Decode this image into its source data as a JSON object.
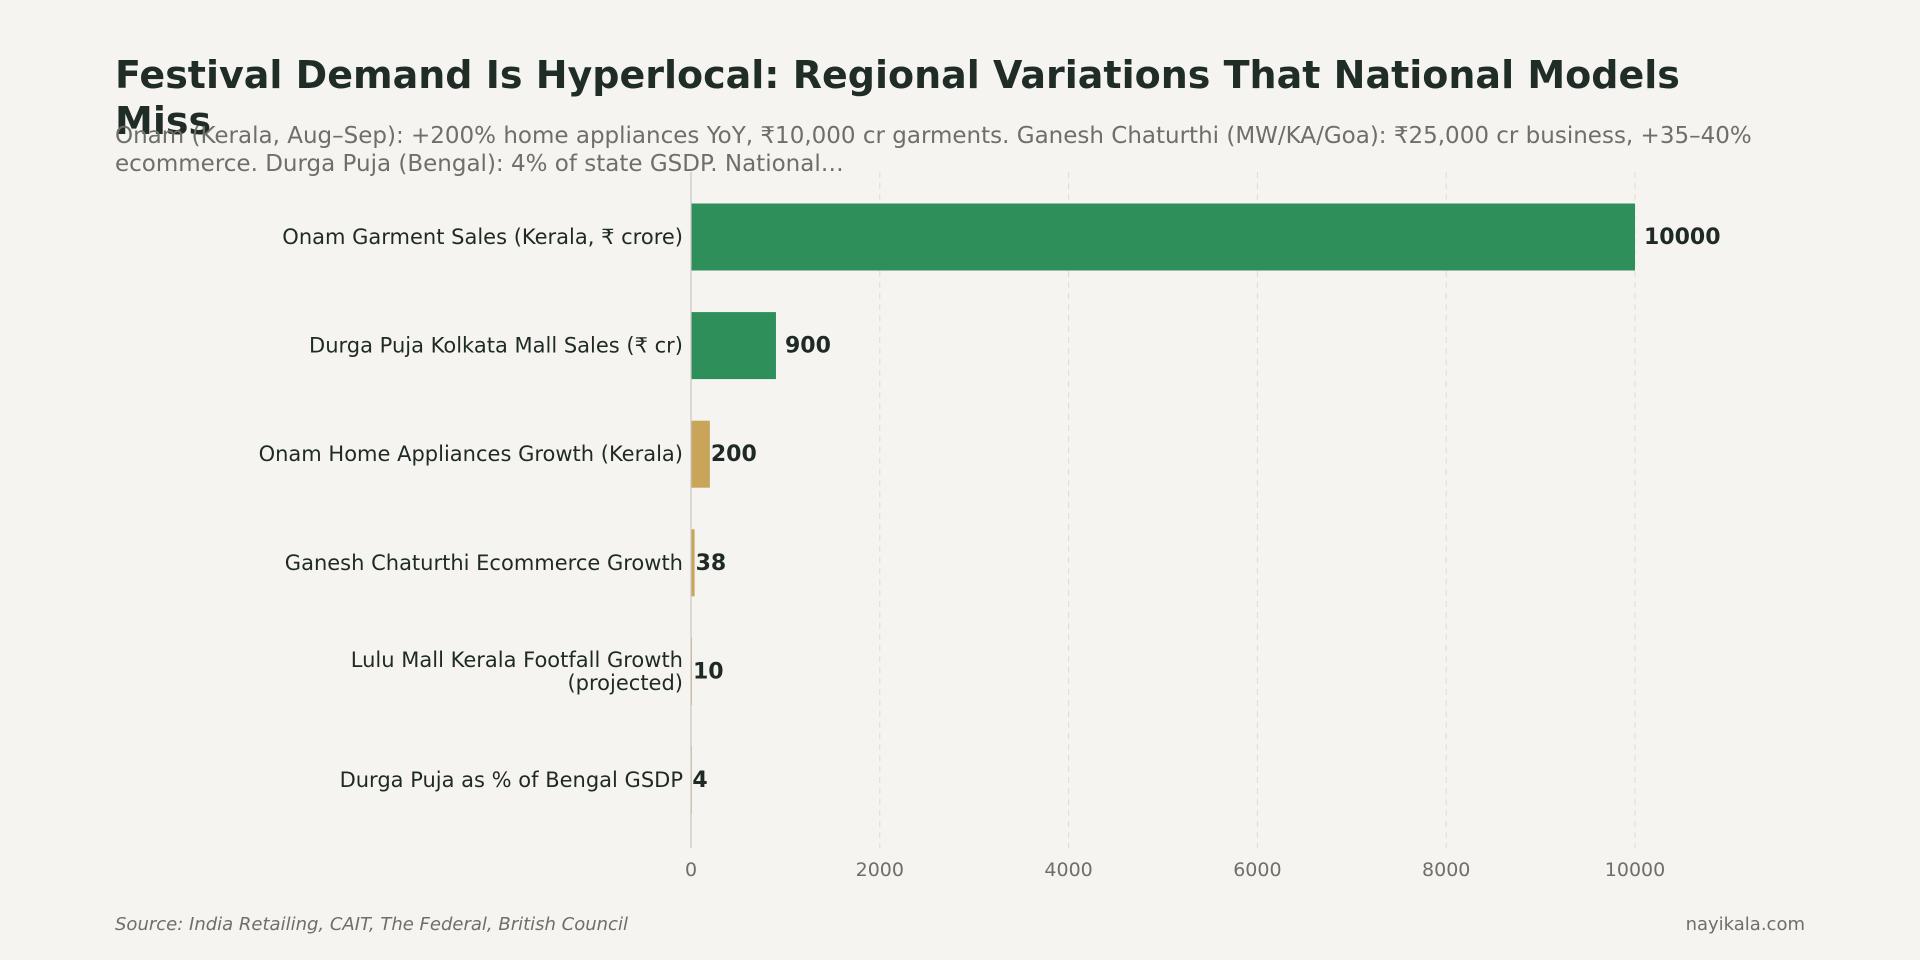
{
  "colors": {
    "background": "#f5f4f0",
    "green": "#2e8f5a",
    "gold": "#c9a55a",
    "text": "#1f2a24",
    "muted": "#6e6e6a",
    "grid": "#dedcd6"
  },
  "header": {
    "title": "Festival Demand Is Hyperlocal: Regional Variations That National Models Miss",
    "subtitle": "Onam (Kerala, Aug–Sep): +200% home appliances YoY, ₹10,000 cr garments. Ganesh Chaturthi (MW/KA/Goa): ₹25,000 cr business, +35–40% ecommerce. Durga Puja (Bengal): 4% of state GSDP. National…"
  },
  "footer": {
    "source": "Source: India Retailing, CAIT, The Federal, British Council",
    "site": "nayikala.com"
  },
  "chart_data": {
    "type": "bar",
    "orientation": "horizontal",
    "categories": [
      "Onam Garment Sales (Kerala, ₹ crore)",
      "Durga Puja Kolkata Mall Sales (₹ cr)",
      "Onam Home Appliances Growth (Kerala)",
      "Ganesh Chaturthi Ecommerce Growth",
      "Lulu Mall Kerala Footfall Growth (projected)",
      "Durga Puja as % of Bengal GSDP"
    ],
    "category_lines": [
      [
        "Onam Garment Sales (Kerala, ₹ crore)"
      ],
      [
        "Durga Puja Kolkata Mall Sales (₹ cr)"
      ],
      [
        "Onam Home Appliances Growth (Kerala)"
      ],
      [
        "Ganesh Chaturthi Ecommerce Growth"
      ],
      [
        "Lulu Mall Kerala Footfall Growth",
        "(projected)"
      ],
      [
        "Durga Puja as % of Bengal GSDP"
      ]
    ],
    "values": [
      10000,
      900,
      200,
      38,
      10,
      4
    ],
    "value_labels": [
      "10000",
      "900",
      "200",
      "38",
      "10",
      "4"
    ],
    "bar_colors": [
      "#2e8f5a",
      "#2e8f5a",
      "#c9a55a",
      "#c9a55a",
      "#c9a55a",
      "#c9a55a"
    ],
    "xlim": [
      0,
      10000
    ],
    "xticks": [
      0,
      2000,
      4000,
      6000,
      8000,
      10000
    ],
    "xtick_labels": [
      "0",
      "2000",
      "4000",
      "6000",
      "8000",
      "10000"
    ],
    "grid": true,
    "xlabel": "",
    "ylabel": ""
  }
}
